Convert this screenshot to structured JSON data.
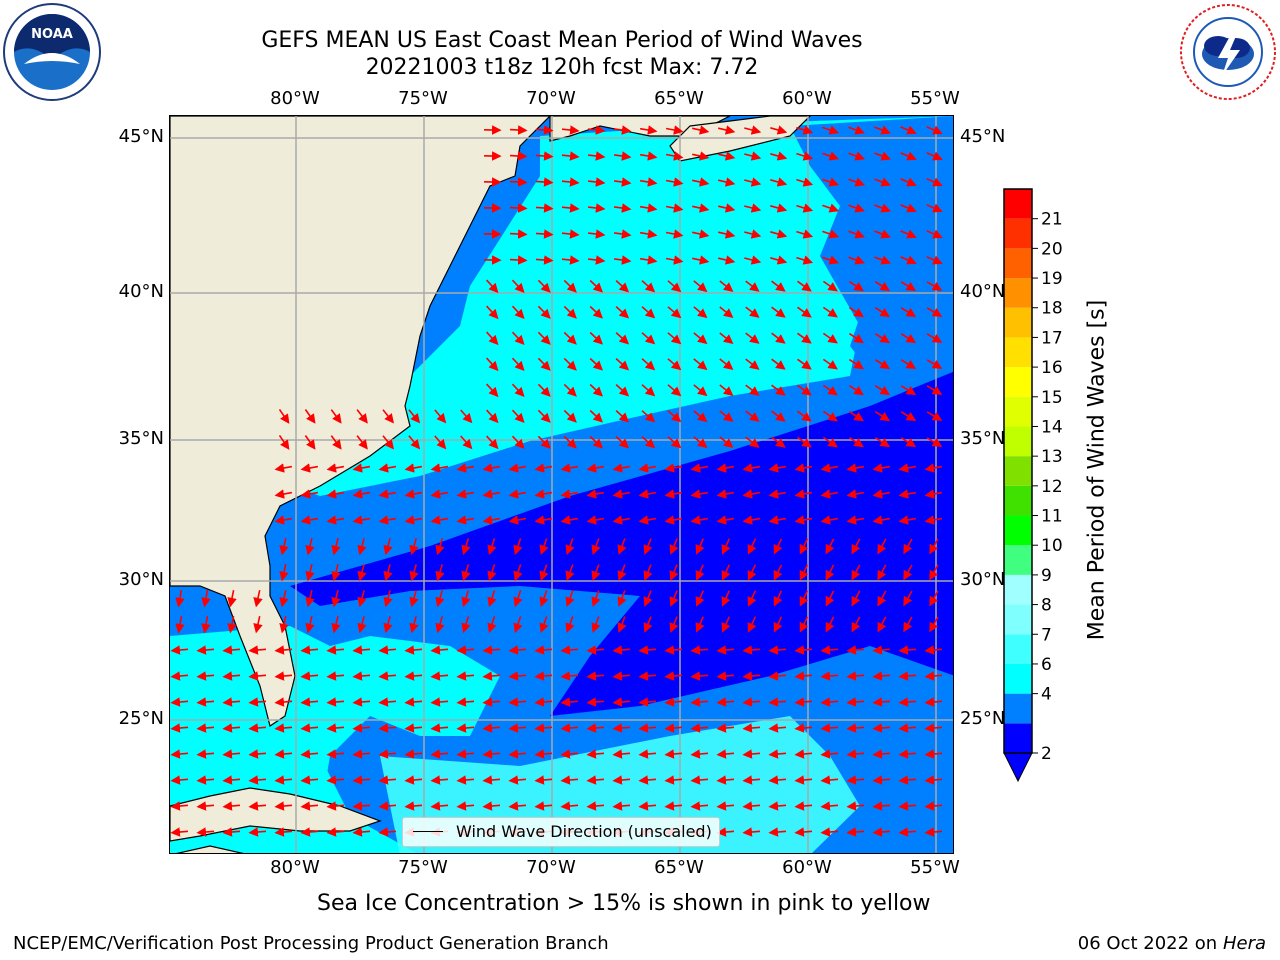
{
  "title": "GEFS MEAN US East Coast Mean Period of Wind Waves",
  "subtitle_line": "20221003 t18z 120h fcst   Max: 7.72",
  "logos": {
    "left": "noaa-logo",
    "left_text": "NOAA",
    "right": "nws-logo"
  },
  "map": {
    "lon_ticks": [
      "80°W",
      "75°W",
      "70°W",
      "65°W",
      "60°W",
      "55°W"
    ],
    "lat_ticks": [
      "45°N",
      "40°N",
      "35°N",
      "30°N",
      "25°N"
    ],
    "lon_range": [
      -85,
      -54.2
    ],
    "lat_range": [
      20.3,
      45.8
    ],
    "colors": {
      "land": "#efedda",
      "coast": "#000000",
      "grid": "#a9a9a9",
      "arrow": "#ff0000"
    }
  },
  "colorbar": {
    "label": "Mean Period of Wind Waves [s]",
    "tick_labels": [
      "2",
      "4",
      "6",
      "7",
      "8",
      "9",
      "10",
      "11",
      "12",
      "13",
      "14",
      "15",
      "16",
      "17",
      "18",
      "19",
      "20",
      "21"
    ],
    "colors": [
      "#0000ff",
      "#0080ff",
      "#00ffff",
      "#40ffff",
      "#80ffff",
      "#a0ffff",
      "#40ff80",
      "#00ff00",
      "#40e000",
      "#80e000",
      "#c0ff00",
      "#e0ff00",
      "#ffff00",
      "#ffe000",
      "#ffc000",
      "#ff9000",
      "#ff6000",
      "#ff3000",
      "#ff0000"
    ],
    "under_color": "#0000ff"
  },
  "legend": {
    "label": "Wind Wave Direction (unscaled)"
  },
  "note": "Sea Ice Concentration > 15% is shown in pink to yellow",
  "footer": {
    "left": "NCEP/EMC/Verification Post Processing Product Generation Branch",
    "date": "06 Oct 2022 on",
    "machine": "Hera"
  }
}
